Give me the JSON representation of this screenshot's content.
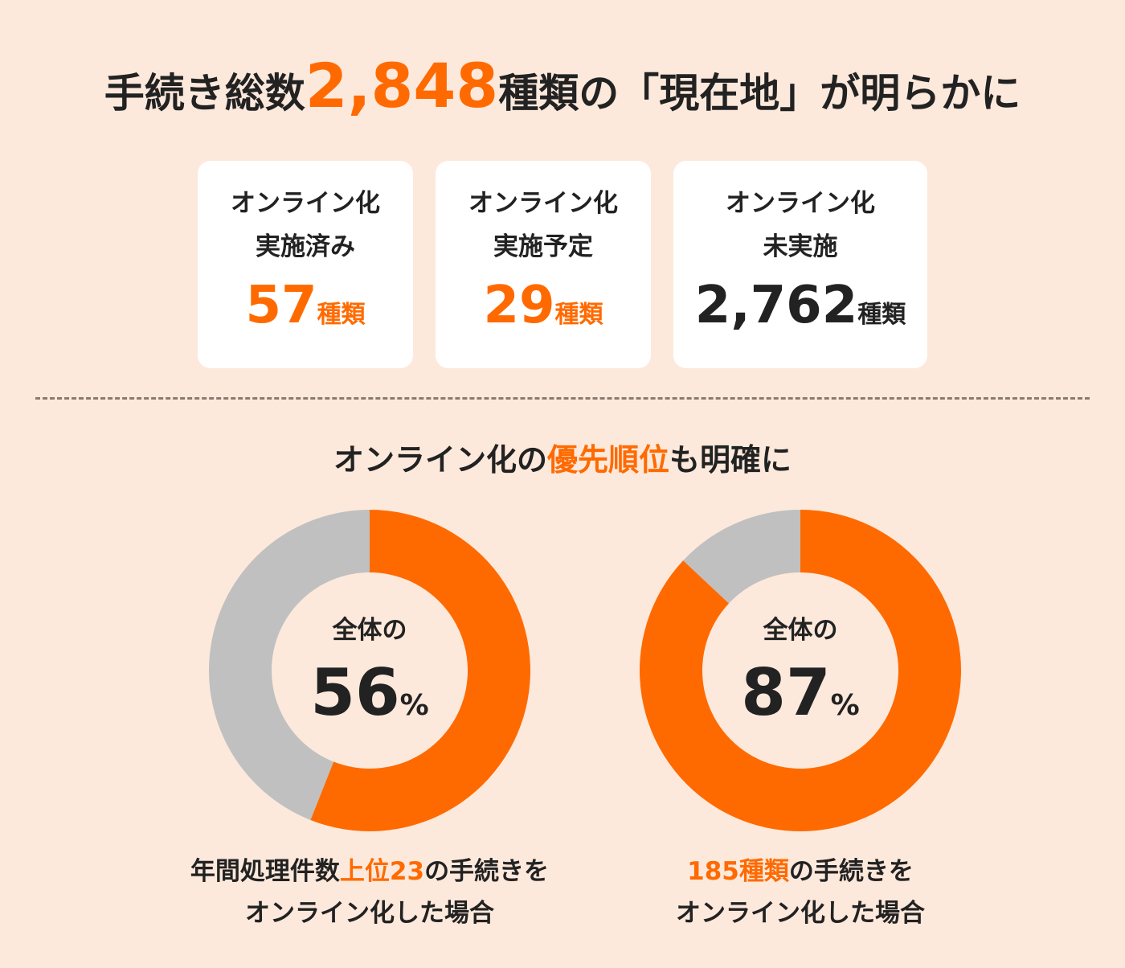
{
  "headline": {
    "prefix": "手続き総数",
    "number": "2,848",
    "suffix": "種類の「現在地」が明らかに"
  },
  "cards": [
    {
      "line1": "オンライン化",
      "line2": "実施済み",
      "value": "57",
      "unit": "種類",
      "accent": true
    },
    {
      "line1": "オンライン化",
      "line2": "実施予定",
      "value": "29",
      "unit": "種類",
      "accent": true
    },
    {
      "line1": "オンライン化",
      "line2": "未実施",
      "value": "2,762",
      "unit": "種類",
      "accent": false
    }
  ],
  "subheadline": {
    "prefix": "オンライン化の",
    "highlight": "優先順位",
    "suffix": "も明確に"
  },
  "donuts": [
    {
      "center_label": "全体の",
      "center_value": "56",
      "center_unit": "%",
      "caption_line1_prefix": "年間処理件数",
      "caption_line1_highlight": "上位23",
      "caption_line1_suffix": "の手続きを",
      "caption_line2": "オンライン化した場合"
    },
    {
      "center_label": "全体の",
      "center_value": "87",
      "center_unit": "%",
      "caption_line1_prefix": "",
      "caption_line1_highlight": "185種類",
      "caption_line1_suffix": "の手続きを",
      "caption_line2": "オンライン化した場合"
    }
  ],
  "colors": {
    "background": "#fde9dc",
    "accent": "#ff6a00",
    "remainder": "#c0c0c0",
    "text": "#222222",
    "card": "#ffffff"
  },
  "chart_data": [
    {
      "type": "pie",
      "variant": "donut",
      "slices": [
        {
          "label": "上位23",
          "value": 56,
          "color": "#ff6a00"
        },
        {
          "label": "",
          "value": 44,
          "color": "#c0c0c0"
        }
      ]
    },
    {
      "type": "pie",
      "variant": "donut",
      "slices": [
        {
          "label": "185種類",
          "value": 87,
          "color": "#ff6a00"
        },
        {
          "label": "",
          "value": 13,
          "color": "#c0c0c0"
        }
      ]
    }
  ]
}
